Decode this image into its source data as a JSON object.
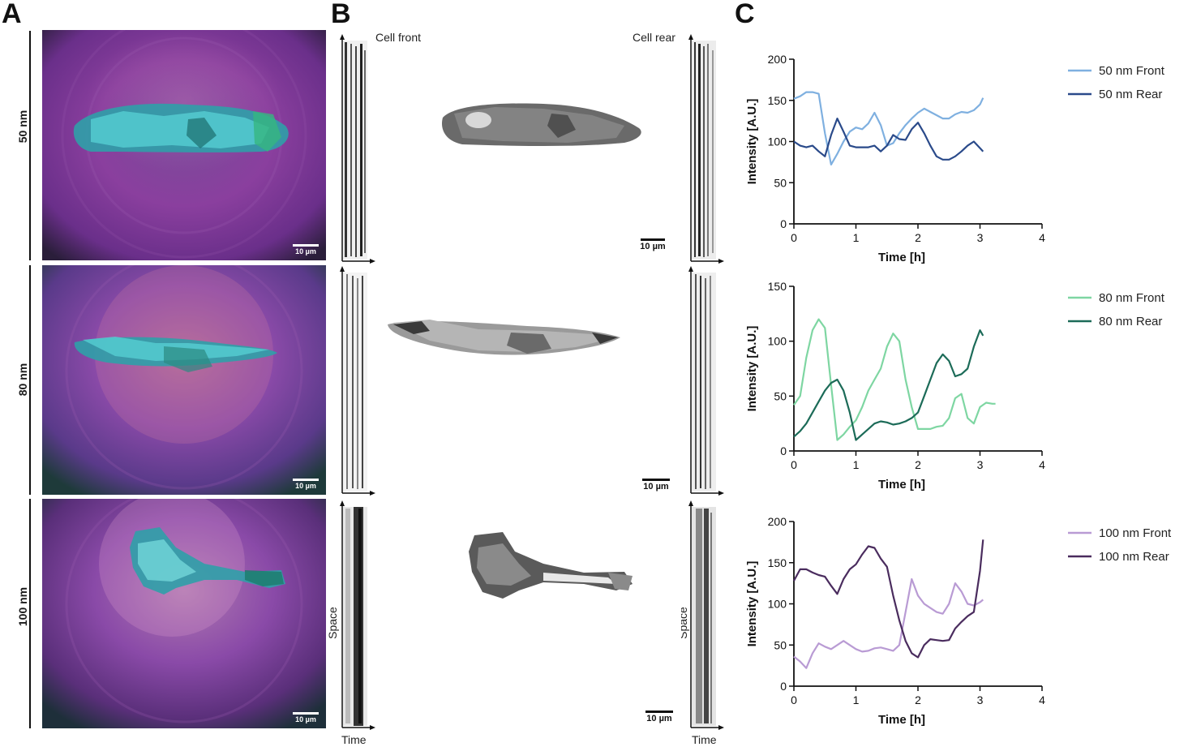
{
  "panel_letters": {
    "a": "A",
    "b": "B",
    "c": "C"
  },
  "rows": [
    {
      "label": "50 nm",
      "scalebar_left": "10 µm",
      "scalebar_bw": "10 µm"
    },
    {
      "label": "80 nm",
      "scalebar_left": "10 µm",
      "scalebar_bw": "10 µm"
    },
    {
      "label": "100 nm",
      "scalebar_left": "10 µm",
      "scalebar_bw": "10 µm"
    }
  ],
  "kymograph_labels": {
    "cell_front": "Cell front",
    "cell_rear": "Cell rear",
    "space": "Space",
    "time": "Time"
  },
  "colors": {
    "50_front": "#7fb0e0",
    "50_rear": "#2a4a8a",
    "80_front": "#7ed6a2",
    "80_rear": "#1c6b58",
    "100_front": "#b99bd4",
    "100_rear": "#4a2c5e"
  },
  "chart_data": [
    {
      "type": "line",
      "xlabel": "Time [h]",
      "ylabel": "Intensity [A.U.]",
      "xlim": [
        0,
        4
      ],
      "ylim": [
        0,
        200
      ],
      "xticks": [
        "0",
        "1",
        "2",
        "3",
        "4"
      ],
      "yticks": [
        "0",
        "50",
        "100",
        "150",
        "200"
      ],
      "series": [
        {
          "name": "50 nm Front",
          "x": [
            0,
            0.1,
            0.2,
            0.3,
            0.4,
            0.5,
            0.6,
            0.7,
            0.8,
            0.9,
            1.0,
            1.1,
            1.2,
            1.3,
            1.4,
            1.5,
            1.6,
            1.7,
            1.8,
            1.9,
            2.0,
            2.1,
            2.2,
            2.3,
            2.4,
            2.5,
            2.6,
            2.7,
            2.8,
            2.9,
            3.0,
            3.05
          ],
          "values": [
            152,
            155,
            160,
            160,
            158,
            110,
            72,
            85,
            100,
            112,
            117,
            115,
            122,
            135,
            120,
            95,
            98,
            110,
            120,
            128,
            135,
            140,
            136,
            132,
            128,
            128,
            133,
            136,
            135,
            138,
            145,
            153
          ]
        },
        {
          "name": "50 nm Rear",
          "x": [
            0,
            0.1,
            0.2,
            0.3,
            0.4,
            0.5,
            0.6,
            0.7,
            0.8,
            0.9,
            1.0,
            1.1,
            1.2,
            1.3,
            1.4,
            1.5,
            1.6,
            1.7,
            1.8,
            1.9,
            2.0,
            2.1,
            2.2,
            2.3,
            2.4,
            2.5,
            2.6,
            2.7,
            2.8,
            2.9,
            3.0,
            3.05
          ],
          "values": [
            100,
            95,
            93,
            95,
            88,
            82,
            108,
            128,
            112,
            95,
            93,
            93,
            93,
            95,
            88,
            95,
            108,
            103,
            102,
            115,
            123,
            110,
            95,
            82,
            78,
            78,
            82,
            88,
            95,
            100,
            92,
            88
          ]
        }
      ]
    },
    {
      "type": "line",
      "xlabel": "Time [h]",
      "ylabel": "Intensity [A.U.]",
      "xlim": [
        0,
        4
      ],
      "ylim": [
        0,
        150
      ],
      "xticks": [
        "0",
        "1",
        "2",
        "3",
        "4"
      ],
      "yticks": [
        "0",
        "50",
        "100",
        "150"
      ],
      "series": [
        {
          "name": "80 nm Front",
          "x": [
            0,
            0.1,
            0.2,
            0.3,
            0.4,
            0.5,
            0.6,
            0.7,
            0.8,
            0.9,
            1.0,
            1.1,
            1.2,
            1.3,
            1.4,
            1.5,
            1.6,
            1.7,
            1.8,
            1.9,
            2.0,
            2.1,
            2.2,
            2.3,
            2.4,
            2.5,
            2.6,
            2.7,
            2.8,
            2.9,
            3.0,
            3.1,
            3.2,
            3.25
          ],
          "values": [
            42,
            50,
            85,
            110,
            120,
            112,
            60,
            10,
            15,
            22,
            28,
            40,
            55,
            65,
            75,
            95,
            107,
            100,
            65,
            40,
            20,
            20,
            20,
            22,
            23,
            30,
            48,
            52,
            30,
            25,
            40,
            44,
            43,
            43
          ]
        },
        {
          "name": "80 nm Rear",
          "x": [
            0,
            0.1,
            0.2,
            0.3,
            0.4,
            0.5,
            0.6,
            0.7,
            0.8,
            0.9,
            1.0,
            1.1,
            1.2,
            1.3,
            1.4,
            1.5,
            1.6,
            1.7,
            1.8,
            1.9,
            2.0,
            2.1,
            2.2,
            2.3,
            2.4,
            2.5,
            2.6,
            2.7,
            2.8,
            2.9,
            3.0,
            3.05
          ],
          "values": [
            13,
            18,
            25,
            35,
            45,
            55,
            62,
            65,
            55,
            35,
            10,
            15,
            20,
            25,
            27,
            26,
            24,
            25,
            27,
            30,
            35,
            50,
            65,
            80,
            88,
            82,
            68,
            70,
            75,
            95,
            110,
            105
          ]
        }
      ]
    },
    {
      "type": "line",
      "xlabel": "Time [h]",
      "ylabel": "Intensity [A.U.]",
      "xlim": [
        0,
        4
      ],
      "ylim": [
        0,
        200
      ],
      "xticks": [
        "0",
        "1",
        "2",
        "3",
        "4"
      ],
      "yticks": [
        "0",
        "50",
        "100",
        "150",
        "200"
      ],
      "series": [
        {
          "name": "100 nm Front",
          "x": [
            0,
            0.1,
            0.2,
            0.3,
            0.4,
            0.5,
            0.6,
            0.7,
            0.8,
            0.9,
            1.0,
            1.1,
            1.2,
            1.3,
            1.4,
            1.5,
            1.6,
            1.7,
            1.8,
            1.9,
            2.0,
            2.1,
            2.2,
            2.3,
            2.4,
            2.5,
            2.6,
            2.7,
            2.8,
            2.9,
            3.0,
            3.05
          ],
          "values": [
            36,
            30,
            22,
            40,
            52,
            48,
            45,
            50,
            55,
            50,
            45,
            42,
            43,
            46,
            47,
            45,
            43,
            50,
            90,
            130,
            110,
            100,
            95,
            90,
            88,
            100,
            125,
            115,
            100,
            98,
            102,
            105
          ]
        },
        {
          "name": "100 nm Rear",
          "x": [
            0,
            0.1,
            0.2,
            0.3,
            0.4,
            0.5,
            0.6,
            0.7,
            0.8,
            0.9,
            1.0,
            1.1,
            1.2,
            1.3,
            1.4,
            1.5,
            1.6,
            1.7,
            1.8,
            1.9,
            2.0,
            2.1,
            2.2,
            2.3,
            2.4,
            2.5,
            2.6,
            2.7,
            2.8,
            2.9,
            3.0,
            3.05
          ],
          "values": [
            128,
            142,
            142,
            138,
            135,
            133,
            122,
            112,
            130,
            142,
            148,
            160,
            170,
            168,
            155,
            145,
            110,
            80,
            55,
            40,
            35,
            50,
            57,
            56,
            55,
            56,
            70,
            78,
            85,
            90,
            140,
            178
          ]
        }
      ]
    }
  ]
}
